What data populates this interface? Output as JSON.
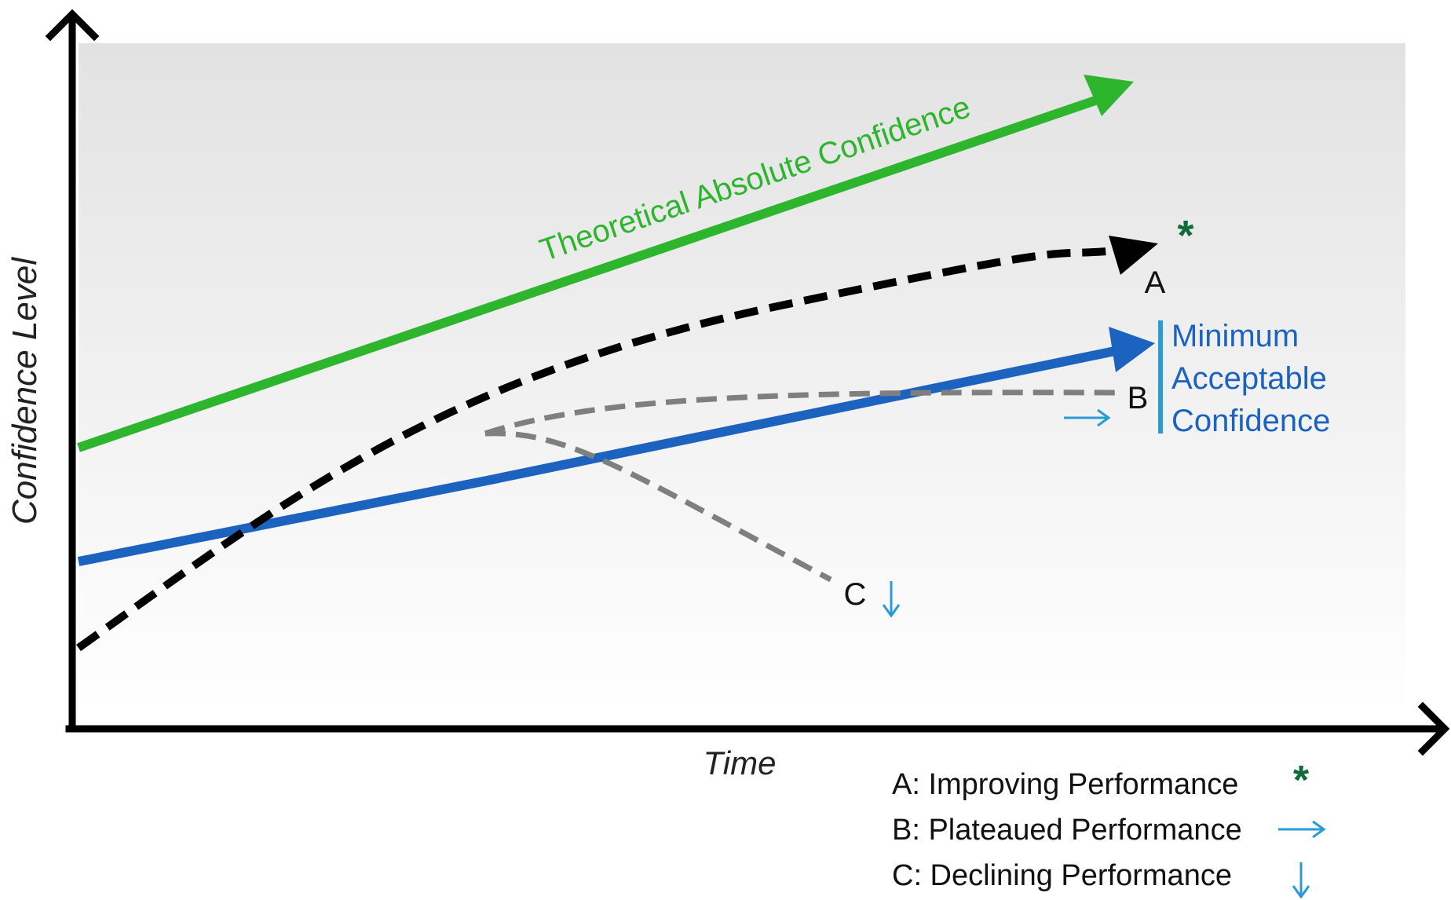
{
  "axes": {
    "y_label": "Confidence Level",
    "x_label": "Time"
  },
  "lines": {
    "theoretical": {
      "label": "Theoretical Absolute Confidence",
      "color": "#2db52d"
    },
    "minimum": {
      "label_lines": [
        "Minimum",
        "Acceptable",
        "Confidence"
      ],
      "color": "#1c63c0"
    },
    "path_a": {
      "label": "A",
      "color": "#000000",
      "marker": "*"
    },
    "path_b": {
      "label": "B",
      "color": "#7f7f7f"
    },
    "path_c": {
      "label": "C",
      "color": "#7f7f7f"
    }
  },
  "legend": {
    "items": [
      {
        "text": "A: Improving Performance",
        "symbol": "asterisk-icon"
      },
      {
        "text": "B: Plateaued Performance",
        "symbol": "right-arrow-icon"
      },
      {
        "text": "C: Declining Performance",
        "symbol": "down-arrow-icon"
      }
    ]
  },
  "colors": {
    "asterisk": "#0f6b3a",
    "indicator_arrow": "#2a9ad8",
    "axis": "#000000",
    "background_top": "#e2e2e2",
    "background_bottom": "#ffffff"
  }
}
